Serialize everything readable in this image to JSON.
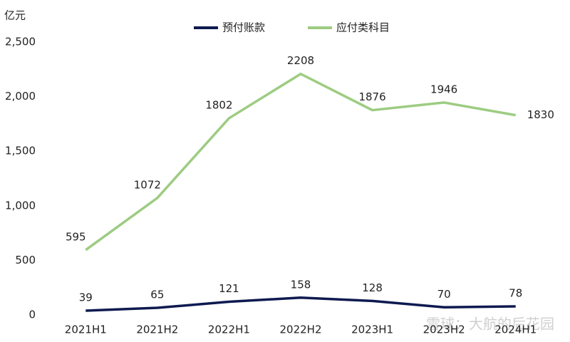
{
  "chart_data": {
    "type": "line",
    "y_unit": "亿元",
    "categories": [
      "2021H1",
      "2021H2",
      "2022H1",
      "2022H2",
      "2023H1",
      "2023H2",
      "2024H1"
    ],
    "series": [
      {
        "name": "预付账款",
        "color": "#0e1a50",
        "values": [
          39,
          65,
          121,
          158,
          128,
          70,
          78
        ]
      },
      {
        "name": "应付类科目",
        "color": "#9dcc82",
        "values": [
          595,
          1072,
          1802,
          2208,
          1876,
          1946,
          1830
        ]
      }
    ],
    "ylim": [
      0,
      2500
    ],
    "yticks": [
      0,
      500,
      {
        "value": 1000,
        "label": "1,000"
      },
      {
        "value": 1500,
        "label": "1,500"
      },
      {
        "value": 2000,
        "label": "2,000"
      },
      {
        "value": 2500,
        "label": "2,500"
      }
    ],
    "grid": false,
    "legend": "top",
    "watermark": "雪球：大航的后花园"
  }
}
